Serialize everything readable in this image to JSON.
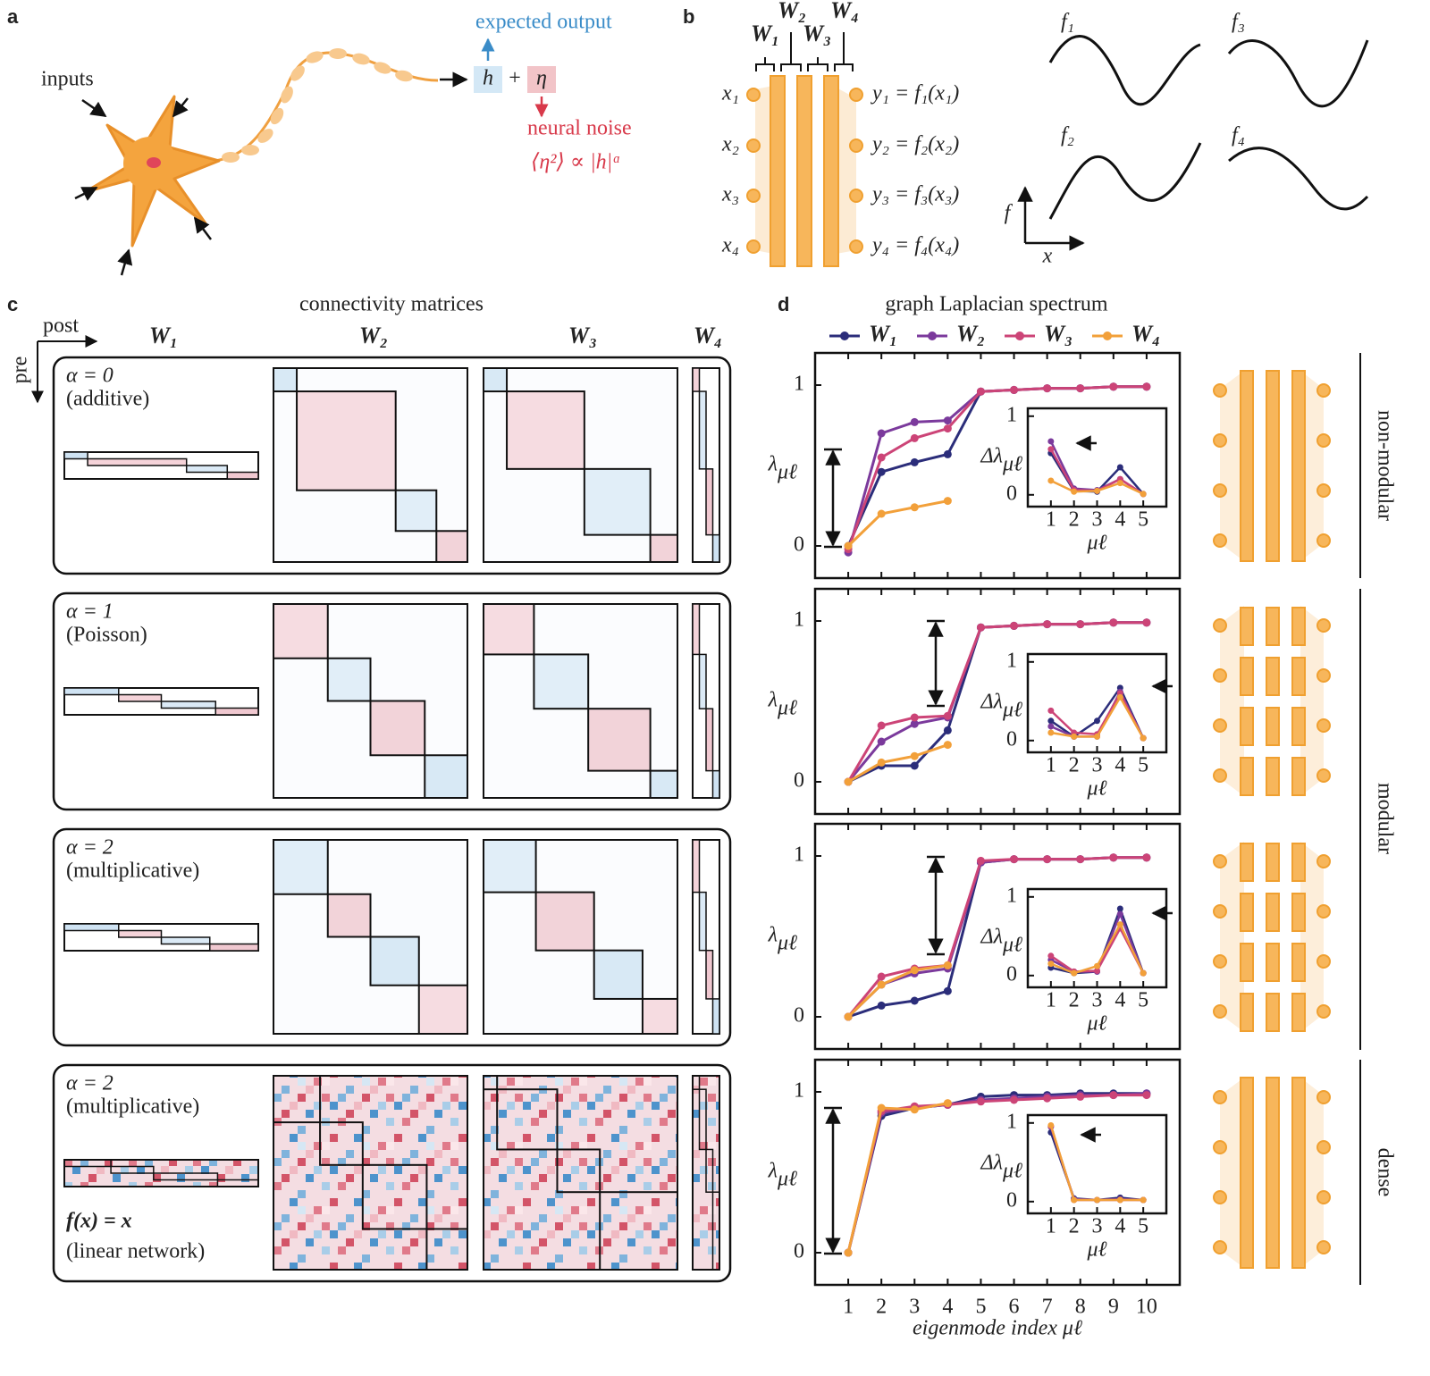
{
  "panel_labels": [
    "a",
    "b",
    "c",
    "d"
  ],
  "panel_a": {
    "inputs": "inputs",
    "expected_output": "expected output",
    "h": "h",
    "plus": "+",
    "eta": "η",
    "neural_noise": "neural noise",
    "noise_law": "⟨η²⟩ ∝ |h|ᵅ"
  },
  "panel_b": {
    "weights": [
      "W₁",
      "W₂",
      "W₃",
      "W₄"
    ],
    "inputs": [
      "x₁",
      "x₂",
      "x₃",
      "x₄"
    ],
    "outputs": [
      "y₁ = f₁(x₁)",
      "y₂ = f₂(x₂)",
      "y₃ = f₃(x₃)",
      "y₄ = f₄(x₄)"
    ],
    "functions": [
      "f₁",
      "f₃",
      "f₂",
      "f₄"
    ],
    "axis_y": "f",
    "axis_x": "x"
  },
  "panel_c": {
    "title": "connectivity matrices",
    "post": "post",
    "pre": "pre",
    "columns": [
      "W₁",
      "W₂",
      "W₃",
      "W₄"
    ],
    "rows": [
      {
        "alpha": "α = 0",
        "label": "(additive)"
      },
      {
        "alpha": "α = 1",
        "label": "(Poisson)"
      },
      {
        "alpha": "α = 2",
        "label": "(multiplicative)"
      },
      {
        "alpha": "α = 2",
        "label": "(multiplicative)",
        "note": "f(x) = x",
        "note_label": "(linear network)"
      }
    ]
  },
  "panel_d": {
    "title": "graph Laplacian spectrum",
    "side_labels": [
      "non-modular",
      "modular",
      "dense"
    ]
  },
  "chart_data": [
    {
      "type": "line",
      "x": [
        1,
        2,
        3,
        4,
        5,
        6,
        7,
        8,
        9,
        10
      ],
      "xlim": [
        0,
        11
      ],
      "ylim": [
        -0.2,
        1.2
      ],
      "xticks": [
        1,
        2,
        3,
        4,
        5,
        6,
        7,
        8,
        9,
        10
      ],
      "yticks": [
        0,
        1
      ],
      "ylabel": {
        "symbol": "λ",
        "sub": "μℓ"
      },
      "series": [
        {
          "name": "W₁",
          "color": "#2b2d7a",
          "values": [
            0,
            0.46,
            0.52,
            0.57,
            0.96,
            0.97,
            0.98,
            0.98,
            0.99,
            0.99
          ]
        },
        {
          "name": "W₂",
          "color": "#7b3a9c",
          "values": [
            -0.04,
            0.7,
            0.77,
            0.78,
            0.96,
            0.97,
            0.98,
            0.98,
            0.99,
            0.99
          ]
        },
        {
          "name": "W₃",
          "color": "#cc4477",
          "values": [
            -0.02,
            0.55,
            0.67,
            0.73,
            0.96,
            0.97,
            0.98,
            0.98,
            0.99,
            0.99
          ]
        },
        {
          "name": "W₄",
          "color": "#f2a03a",
          "values": [
            0,
            0.2,
            0.24,
            0.28,
            null,
            null,
            null,
            null,
            null,
            null
          ]
        }
      ]
    },
    {
      "type": "line",
      "x": [
        1,
        2,
        3,
        4,
        5
      ],
      "xlim": [
        0,
        6
      ],
      "ylim": [
        -0.15,
        1.1
      ],
      "xticks": [
        1,
        2,
        3,
        4,
        5
      ],
      "yticks": [
        0,
        1
      ],
      "ylabel": {
        "symbol": "Δλ",
        "sub": "μℓ"
      },
      "xlabel": "μℓ",
      "series": [
        {
          "color": "#2b2d7a",
          "values": [
            0.53,
            0.05,
            0.04,
            0.35,
            0.01
          ]
        },
        {
          "color": "#7b3a9c",
          "values": [
            0.68,
            0.08,
            0.06,
            0.2,
            0.01
          ]
        },
        {
          "color": "#cc4477",
          "values": [
            0.58,
            0.06,
            0.05,
            0.2,
            0.01
          ]
        },
        {
          "color": "#f2a03a",
          "values": [
            0.18,
            0.04,
            0.05,
            0.15,
            0.01
          ]
        }
      ]
    },
    {
      "type": "line",
      "x": [
        1,
        2,
        3,
        4,
        5,
        6,
        7,
        8,
        9,
        10
      ],
      "xlim": [
        0,
        11
      ],
      "ylim": [
        -0.2,
        1.2
      ],
      "xticks": [
        1,
        2,
        3,
        4,
        5,
        6,
        7,
        8,
        9,
        10
      ],
      "yticks": [
        0,
        1
      ],
      "ylabel": {
        "symbol": "λ",
        "sub": "μℓ"
      },
      "series": [
        {
          "color": "#2b2d7a",
          "values": [
            0,
            0.1,
            0.1,
            0.32,
            0.96,
            0.97,
            0.98,
            0.98,
            0.99,
            0.99
          ]
        },
        {
          "color": "#7b3a9c",
          "values": [
            0,
            0.25,
            0.36,
            0.4,
            0.96,
            0.97,
            0.98,
            0.98,
            0.99,
            0.99
          ]
        },
        {
          "color": "#cc4477",
          "values": [
            0,
            0.35,
            0.4,
            0.41,
            0.96,
            0.97,
            0.98,
            0.98,
            0.99,
            0.99
          ]
        },
        {
          "color": "#f2a03a",
          "values": [
            0,
            0.12,
            0.16,
            0.23,
            null,
            null,
            null,
            null,
            null,
            null
          ]
        }
      ]
    },
    {
      "type": "line",
      "x": [
        1,
        2,
        3,
        4,
        5
      ],
      "xlim": [
        0,
        6
      ],
      "ylim": [
        -0.15,
        1.1
      ],
      "xticks": [
        1,
        2,
        3,
        4,
        5
      ],
      "yticks": [
        0,
        1
      ],
      "ylabel": {
        "symbol": "Δλ",
        "sub": "μℓ"
      },
      "xlabel": "μℓ",
      "series": [
        {
          "color": "#2b2d7a",
          "values": [
            0.25,
            0.05,
            0.25,
            0.67,
            0.03
          ]
        },
        {
          "color": "#7b3a9c",
          "values": [
            0.18,
            0.05,
            0.05,
            0.62,
            0.03
          ]
        },
        {
          "color": "#cc4477",
          "values": [
            0.38,
            0.1,
            0.08,
            0.6,
            0.03
          ]
        },
        {
          "color": "#f2a03a",
          "values": [
            0.1,
            0.05,
            0.05,
            0.55,
            0.03
          ]
        }
      ]
    },
    {
      "type": "line",
      "x": [
        1,
        2,
        3,
        4,
        5,
        6,
        7,
        8,
        9,
        10
      ],
      "xlim": [
        0,
        11
      ],
      "ylim": [
        -0.2,
        1.2
      ],
      "xticks": [
        1,
        2,
        3,
        4,
        5,
        6,
        7,
        8,
        9,
        10
      ],
      "yticks": [
        0,
        1
      ],
      "ylabel": {
        "symbol": "λ",
        "sub": "μℓ"
      },
      "series": [
        {
          "color": "#2b2d7a",
          "values": [
            0,
            0.07,
            0.1,
            0.16,
            0.96,
            0.98,
            0.98,
            0.98,
            0.99,
            0.99
          ]
        },
        {
          "color": "#7b3a9c",
          "values": [
            0,
            0.2,
            0.27,
            0.3,
            0.96,
            0.98,
            0.98,
            0.98,
            0.99,
            0.99
          ]
        },
        {
          "color": "#cc4477",
          "values": [
            0,
            0.25,
            0.3,
            0.32,
            0.97,
            0.98,
            0.98,
            0.98,
            0.99,
            0.99
          ]
        },
        {
          "color": "#f2a03a",
          "values": [
            0,
            0.2,
            0.29,
            0.32,
            null,
            null,
            null,
            null,
            null,
            null
          ]
        }
      ]
    },
    {
      "type": "line",
      "x": [
        1,
        2,
        3,
        4,
        5
      ],
      "xlim": [
        0,
        6
      ],
      "ylim": [
        -0.15,
        1.1
      ],
      "xticks": [
        1,
        2,
        3,
        4,
        5
      ],
      "yticks": [
        0,
        1
      ],
      "ylabel": {
        "symbol": "Δλ",
        "sub": "μℓ"
      },
      "xlabel": "μℓ",
      "series": [
        {
          "color": "#2b2d7a",
          "values": [
            0.1,
            0.03,
            0.05,
            0.85,
            0.03
          ]
        },
        {
          "color": "#7b3a9c",
          "values": [
            0.2,
            0.05,
            0.05,
            0.78,
            0.03
          ]
        },
        {
          "color": "#cc4477",
          "values": [
            0.25,
            0.05,
            0.06,
            0.6,
            0.03
          ]
        },
        {
          "color": "#f2a03a",
          "values": [
            0.15,
            0.03,
            0.12,
            0.65,
            0.03
          ]
        }
      ]
    },
    {
      "type": "line",
      "x": [
        1,
        2,
        3,
        4,
        5,
        6,
        7,
        8,
        9,
        10
      ],
      "xlim": [
        0,
        11
      ],
      "ylim": [
        -0.2,
        1.2
      ],
      "xticks": [
        1,
        2,
        3,
        4,
        5,
        6,
        7,
        8,
        9,
        10
      ],
      "yticks": [
        0,
        1
      ],
      "ylabel": {
        "symbol": "λ",
        "sub": "μℓ"
      },
      "xlabel": "eigenmode index μℓ",
      "series": [
        {
          "color": "#2b2d7a",
          "values": [
            0,
            0.85,
            0.9,
            0.92,
            0.97,
            0.98,
            0.98,
            0.99,
            0.99,
            0.99
          ]
        },
        {
          "color": "#7b3a9c",
          "values": [
            0,
            0.87,
            0.9,
            0.92,
            0.95,
            0.96,
            0.97,
            0.98,
            0.98,
            0.99
          ]
        },
        {
          "color": "#cc4477",
          "values": [
            0,
            0.88,
            0.91,
            0.92,
            0.94,
            0.95,
            0.96,
            0.97,
            0.98,
            0.98
          ]
        },
        {
          "color": "#f2a03a",
          "values": [
            0,
            0.9,
            0.89,
            0.93,
            null,
            null,
            null,
            null,
            null,
            null
          ]
        }
      ]
    },
    {
      "type": "line",
      "x": [
        1,
        2,
        3,
        4,
        5
      ],
      "xlim": [
        0,
        6
      ],
      "ylim": [
        -0.15,
        1.1
      ],
      "xticks": [
        1,
        2,
        3,
        4,
        5
      ],
      "yticks": [
        0,
        1
      ],
      "ylabel": {
        "symbol": "Δλ",
        "sub": "μℓ"
      },
      "xlabel": "μℓ",
      "series": [
        {
          "color": "#2b2d7a",
          "values": [
            0.88,
            0.04,
            0.02,
            0.05,
            0.02
          ]
        },
        {
          "color": "#7b3a9c",
          "values": [
            0.95,
            0.03,
            0.02,
            0.03,
            0.02
          ]
        },
        {
          "color": "#cc4477",
          "values": [
            0.96,
            0.02,
            0.02,
            0.02,
            0.02
          ]
        },
        {
          "color": "#f2a03a",
          "values": [
            0.97,
            0.02,
            0.02,
            0.02,
            0.02
          ]
        }
      ]
    }
  ]
}
